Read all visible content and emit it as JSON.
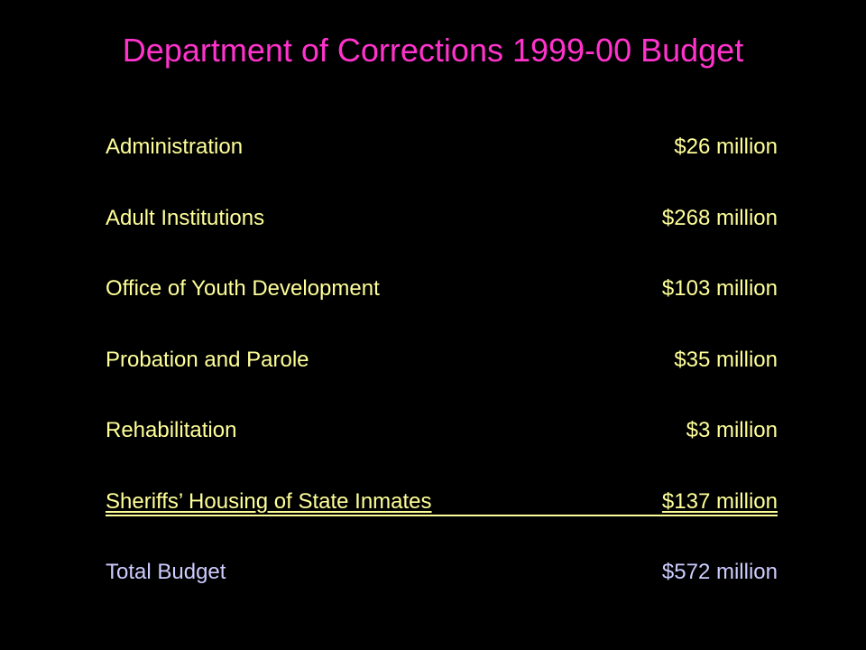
{
  "title": "Department of Corrections 1999-00 Budget",
  "colors": {
    "background": "#000000",
    "title": "#ff33cc",
    "items": "#ffff99",
    "total": "#ccccff"
  },
  "items": [
    {
      "label": "Administration",
      "amount": "$26 million"
    },
    {
      "label": "Adult Institutions",
      "amount": "$268 million"
    },
    {
      "label": "Office of Youth Development",
      "amount": "$103 million"
    },
    {
      "label": "Probation and Parole",
      "amount": "$35 million"
    },
    {
      "label": "Rehabilitation",
      "amount": "$3 million"
    },
    {
      "label": "Sheriffs’ Housing of State Inmates",
      "amount": "$137 million"
    }
  ],
  "total": {
    "label": "Total Budget",
    "amount": "$572 million"
  }
}
